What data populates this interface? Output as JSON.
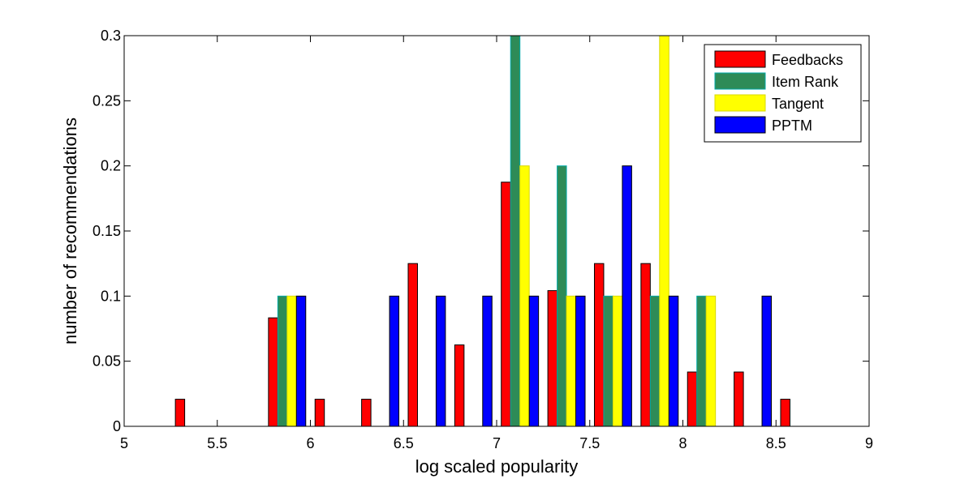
{
  "chart_data": {
    "type": "bar",
    "xlabel": "log scaled popularity",
    "ylabel": "number of recommendations",
    "xlim": [
      5,
      9
    ],
    "ylim": [
      0,
      0.3
    ],
    "xticks": [
      "5",
      "5.5",
      "6",
      "6.5",
      "7",
      "7.5",
      "8",
      "8.5",
      "9"
    ],
    "yticks": [
      "0",
      "0.05",
      "0.1",
      "0.15",
      "0.2",
      "0.25",
      "0.3"
    ],
    "grid": false,
    "legend_position": "top-right",
    "categories": [
      5.125,
      5.375,
      5.625,
      5.875,
      6.125,
      6.375,
      6.625,
      6.875,
      7.125,
      7.375,
      7.625,
      7.875,
      8.125,
      8.375,
      8.625,
      8.875
    ],
    "series": [
      {
        "name": "Feedbacks",
        "color": "#ff0000",
        "edge": "#000000",
        "values": [
          0,
          0.0208,
          0,
          0.0833,
          0.0208,
          0.0208,
          0.125,
          0.0625,
          0.1875,
          0.1042,
          0.125,
          0.125,
          0.0417,
          0.0417,
          0.0208,
          0
        ]
      },
      {
        "name": "Item Rank",
        "color": "#2e8b57",
        "edge": "#00aaaa",
        "values": [
          0,
          0,
          0,
          0.1,
          0,
          0,
          0,
          0,
          0.3,
          0.2,
          0.1,
          0.1,
          0.1,
          0,
          0,
          0
        ]
      },
      {
        "name": "Tangent",
        "color": "#ffff00",
        "edge": "#d8d800",
        "values": [
          0,
          0,
          0,
          0.1,
          0,
          0,
          0,
          0,
          0.2,
          0.1,
          0.1,
          0.3,
          0.1,
          0,
          0,
          0
        ]
      },
      {
        "name": "PPTM",
        "color": "#0000ff",
        "edge": "#000000",
        "values": [
          0,
          0,
          0,
          0.1,
          0,
          0.1,
          0.1,
          0.1,
          0.1,
          0.1,
          0.2,
          0.1,
          0,
          0.1,
          0,
          0
        ]
      }
    ]
  }
}
